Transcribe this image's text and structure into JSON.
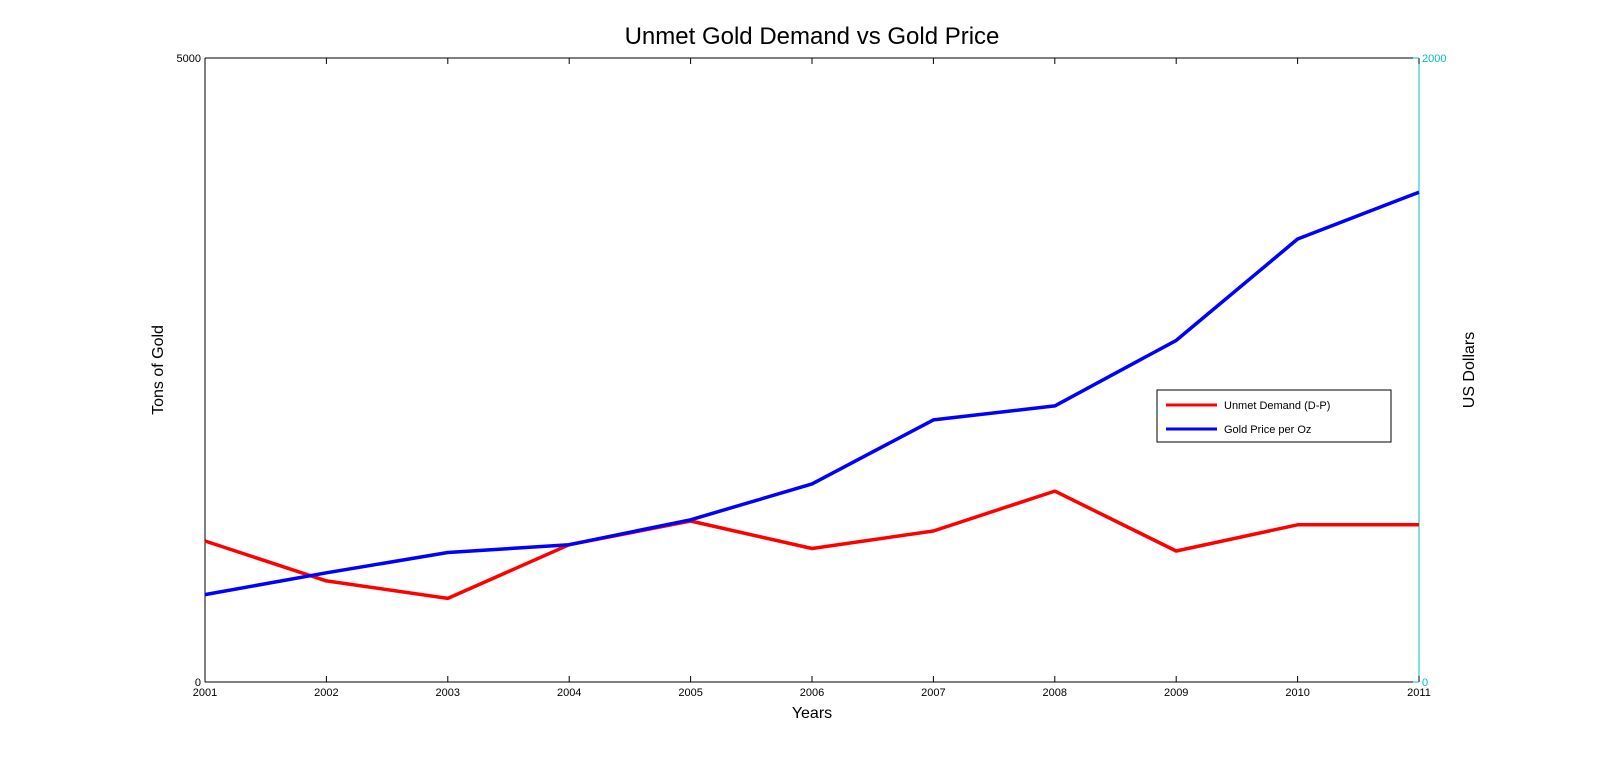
{
  "chart_data": {
    "type": "line",
    "title": "Unmet Gold Demand vs Gold Price",
    "xlabel": "Years",
    "ylabel_left": "Tons of Gold",
    "ylabel_right": "US Dollars",
    "x": [
      2001,
      2002,
      2003,
      2004,
      2005,
      2006,
      2007,
      2008,
      2009,
      2010,
      2011
    ],
    "x_tick_labels": [
      "2001",
      "2002",
      "2003",
      "2004",
      "2005",
      "2006",
      "2007",
      "2008",
      "2009",
      "2010",
      "2011"
    ],
    "xlim": [
      2001,
      2011
    ],
    "ylim_left": [
      0,
      5000
    ],
    "ylim_right": [
      0,
      2000
    ],
    "left_tick_labels": [
      "0",
      "5000"
    ],
    "right_tick_labels": [
      "0",
      "2000"
    ],
    "right_axis_color": "#00bfbf",
    "grid": false,
    "legend_position": "right",
    "series": [
      {
        "name": "Unmet Demand (D-P)",
        "axis": "left",
        "color": "#ff0000",
        "values": [
          1130,
          810,
          670,
          1100,
          1290,
          1070,
          1210,
          1530,
          1050,
          1260,
          1260
        ]
      },
      {
        "name": "Gold Price per Oz",
        "axis": "right",
        "color": "#0000ff",
        "values": [
          280,
          350,
          415,
          440,
          520,
          635,
          840,
          885,
          1095,
          1420,
          1570
        ]
      }
    ]
  }
}
